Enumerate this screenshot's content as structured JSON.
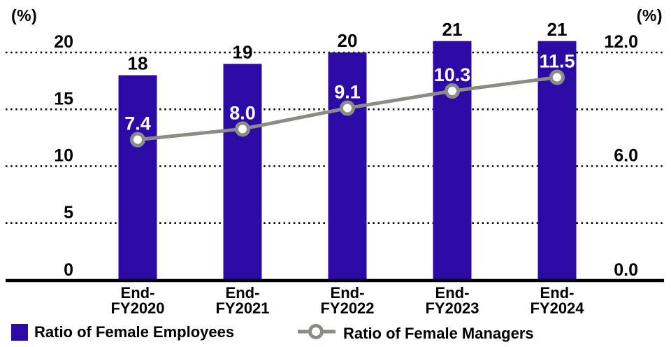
{
  "chart_data": {
    "type": "bar+line",
    "title": "",
    "categories": [
      "End-FY2020",
      "End-FY2021",
      "End-FY2022",
      "End-FY2023",
      "End-FY2024"
    ],
    "category_lines": [
      [
        "End-",
        "FY2020"
      ],
      [
        "End-",
        "FY2021"
      ],
      [
        "End-",
        "FY2022"
      ],
      [
        "End-",
        "FY2023"
      ],
      [
        "End-",
        "FY2024"
      ]
    ],
    "series": [
      {
        "name": "Ratio of Female Employees",
        "type": "bar",
        "axis": "left",
        "values": [
          18,
          19,
          20,
          21,
          21
        ],
        "value_labels": [
          "18",
          "19",
          "20",
          "21",
          "21"
        ],
        "color": "#2B0AA6"
      },
      {
        "name": "Ratio of Female Managers",
        "type": "line",
        "axis": "right",
        "values": [
          7.4,
          8.0,
          9.1,
          10.3,
          11.5
        ],
        "value_labels": [
          "7.4",
          "8.0",
          "9.1",
          "10.3",
          "11.5"
        ],
        "color": "#8C8C87",
        "marker": "open-circle"
      }
    ],
    "left_axis": {
      "unit": "(%)",
      "tick_values": [
        0,
        5,
        10,
        15,
        20
      ],
      "tick_labels": [
        "0",
        "5",
        "10",
        "15",
        "20"
      ],
      "range": [
        0,
        21.7
      ]
    },
    "right_axis": {
      "unit": "(%)",
      "tick_values": [
        0,
        6,
        12
      ],
      "tick_labels": [
        "0.0",
        "6.0",
        "12.0"
      ],
      "range": [
        0,
        13
      ]
    },
    "grid": {
      "horizontal": "dotted-black",
      "vertical": "none"
    },
    "legend_position": "bottom-left"
  },
  "legend": {
    "items": [
      {
        "label": "Ratio of Female Employees",
        "swatch": "blue-square"
      },
      {
        "label": "Ratio of Female Managers",
        "swatch": "gray-line-open-circle"
      }
    ]
  },
  "colors": {
    "bar": "#2B0AA6",
    "line": "#8C8C87",
    "grid": "#000000",
    "text": "#000000",
    "value_on_bar": "#FFFFFF",
    "background": "#FFFFFF"
  }
}
